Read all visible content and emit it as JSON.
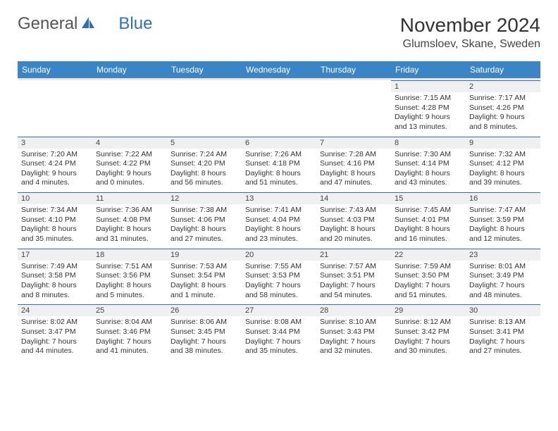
{
  "logo": {
    "text1": "General",
    "text2": "Blue"
  },
  "title": "November 2024",
  "location": "Glumsloev, Skane, Sweden",
  "colors": {
    "header_bg": "#3b85c6",
    "header_fg": "#ffffff",
    "daynum_bg": "#eef0f2",
    "daynum_border": "#3b6ea0",
    "body_text": "#333333",
    "logo_gray": "#555555",
    "logo_blue": "#2f6fb5"
  },
  "day_headers": [
    "Sunday",
    "Monday",
    "Tuesday",
    "Wednesday",
    "Thursday",
    "Friday",
    "Saturday"
  ],
  "weeks": [
    [
      {
        "day": "",
        "sunrise": "",
        "sunset": "",
        "daylight": ""
      },
      {
        "day": "",
        "sunrise": "",
        "sunset": "",
        "daylight": ""
      },
      {
        "day": "",
        "sunrise": "",
        "sunset": "",
        "daylight": ""
      },
      {
        "day": "",
        "sunrise": "",
        "sunset": "",
        "daylight": ""
      },
      {
        "day": "",
        "sunrise": "",
        "sunset": "",
        "daylight": ""
      },
      {
        "day": "1",
        "sunrise": "Sunrise: 7:15 AM",
        "sunset": "Sunset: 4:28 PM",
        "daylight": "Daylight: 9 hours and 13 minutes."
      },
      {
        "day": "2",
        "sunrise": "Sunrise: 7:17 AM",
        "sunset": "Sunset: 4:26 PM",
        "daylight": "Daylight: 9 hours and 8 minutes."
      }
    ],
    [
      {
        "day": "3",
        "sunrise": "Sunrise: 7:20 AM",
        "sunset": "Sunset: 4:24 PM",
        "daylight": "Daylight: 9 hours and 4 minutes."
      },
      {
        "day": "4",
        "sunrise": "Sunrise: 7:22 AM",
        "sunset": "Sunset: 4:22 PM",
        "daylight": "Daylight: 9 hours and 0 minutes."
      },
      {
        "day": "5",
        "sunrise": "Sunrise: 7:24 AM",
        "sunset": "Sunset: 4:20 PM",
        "daylight": "Daylight: 8 hours and 56 minutes."
      },
      {
        "day": "6",
        "sunrise": "Sunrise: 7:26 AM",
        "sunset": "Sunset: 4:18 PM",
        "daylight": "Daylight: 8 hours and 51 minutes."
      },
      {
        "day": "7",
        "sunrise": "Sunrise: 7:28 AM",
        "sunset": "Sunset: 4:16 PM",
        "daylight": "Daylight: 8 hours and 47 minutes."
      },
      {
        "day": "8",
        "sunrise": "Sunrise: 7:30 AM",
        "sunset": "Sunset: 4:14 PM",
        "daylight": "Daylight: 8 hours and 43 minutes."
      },
      {
        "day": "9",
        "sunrise": "Sunrise: 7:32 AM",
        "sunset": "Sunset: 4:12 PM",
        "daylight": "Daylight: 8 hours and 39 minutes."
      }
    ],
    [
      {
        "day": "10",
        "sunrise": "Sunrise: 7:34 AM",
        "sunset": "Sunset: 4:10 PM",
        "daylight": "Daylight: 8 hours and 35 minutes."
      },
      {
        "day": "11",
        "sunrise": "Sunrise: 7:36 AM",
        "sunset": "Sunset: 4:08 PM",
        "daylight": "Daylight: 8 hours and 31 minutes."
      },
      {
        "day": "12",
        "sunrise": "Sunrise: 7:38 AM",
        "sunset": "Sunset: 4:06 PM",
        "daylight": "Daylight: 8 hours and 27 minutes."
      },
      {
        "day": "13",
        "sunrise": "Sunrise: 7:41 AM",
        "sunset": "Sunset: 4:04 PM",
        "daylight": "Daylight: 8 hours and 23 minutes."
      },
      {
        "day": "14",
        "sunrise": "Sunrise: 7:43 AM",
        "sunset": "Sunset: 4:03 PM",
        "daylight": "Daylight: 8 hours and 20 minutes."
      },
      {
        "day": "15",
        "sunrise": "Sunrise: 7:45 AM",
        "sunset": "Sunset: 4:01 PM",
        "daylight": "Daylight: 8 hours and 16 minutes."
      },
      {
        "day": "16",
        "sunrise": "Sunrise: 7:47 AM",
        "sunset": "Sunset: 3:59 PM",
        "daylight": "Daylight: 8 hours and 12 minutes."
      }
    ],
    [
      {
        "day": "17",
        "sunrise": "Sunrise: 7:49 AM",
        "sunset": "Sunset: 3:58 PM",
        "daylight": "Daylight: 8 hours and 8 minutes."
      },
      {
        "day": "18",
        "sunrise": "Sunrise: 7:51 AM",
        "sunset": "Sunset: 3:56 PM",
        "daylight": "Daylight: 8 hours and 5 minutes."
      },
      {
        "day": "19",
        "sunrise": "Sunrise: 7:53 AM",
        "sunset": "Sunset: 3:54 PM",
        "daylight": "Daylight: 8 hours and 1 minute."
      },
      {
        "day": "20",
        "sunrise": "Sunrise: 7:55 AM",
        "sunset": "Sunset: 3:53 PM",
        "daylight": "Daylight: 7 hours and 58 minutes."
      },
      {
        "day": "21",
        "sunrise": "Sunrise: 7:57 AM",
        "sunset": "Sunset: 3:51 PM",
        "daylight": "Daylight: 7 hours and 54 minutes."
      },
      {
        "day": "22",
        "sunrise": "Sunrise: 7:59 AM",
        "sunset": "Sunset: 3:50 PM",
        "daylight": "Daylight: 7 hours and 51 minutes."
      },
      {
        "day": "23",
        "sunrise": "Sunrise: 8:01 AM",
        "sunset": "Sunset: 3:49 PM",
        "daylight": "Daylight: 7 hours and 48 minutes."
      }
    ],
    [
      {
        "day": "24",
        "sunrise": "Sunrise: 8:02 AM",
        "sunset": "Sunset: 3:47 PM",
        "daylight": "Daylight: 7 hours and 44 minutes."
      },
      {
        "day": "25",
        "sunrise": "Sunrise: 8:04 AM",
        "sunset": "Sunset: 3:46 PM",
        "daylight": "Daylight: 7 hours and 41 minutes."
      },
      {
        "day": "26",
        "sunrise": "Sunrise: 8:06 AM",
        "sunset": "Sunset: 3:45 PM",
        "daylight": "Daylight: 7 hours and 38 minutes."
      },
      {
        "day": "27",
        "sunrise": "Sunrise: 8:08 AM",
        "sunset": "Sunset: 3:44 PM",
        "daylight": "Daylight: 7 hours and 35 minutes."
      },
      {
        "day": "28",
        "sunrise": "Sunrise: 8:10 AM",
        "sunset": "Sunset: 3:43 PM",
        "daylight": "Daylight: 7 hours and 32 minutes."
      },
      {
        "day": "29",
        "sunrise": "Sunrise: 8:12 AM",
        "sunset": "Sunset: 3:42 PM",
        "daylight": "Daylight: 7 hours and 30 minutes."
      },
      {
        "day": "30",
        "sunrise": "Sunrise: 8:13 AM",
        "sunset": "Sunset: 3:41 PM",
        "daylight": "Daylight: 7 hours and 27 minutes."
      }
    ]
  ]
}
